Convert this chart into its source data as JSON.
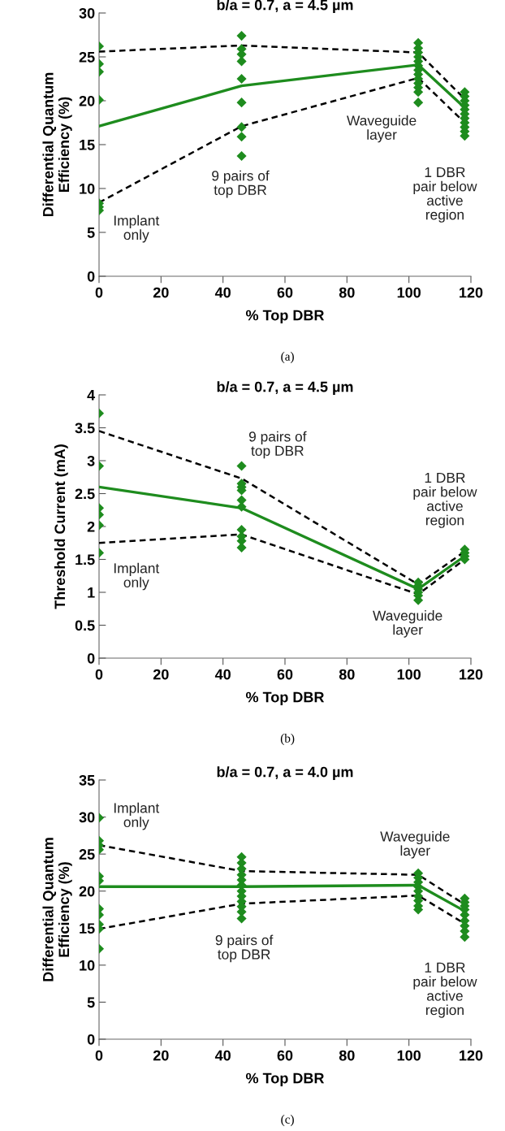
{
  "chart_data": [
    {
      "type": "line",
      "title": "b/a = 0.7, a = 4.5 µm",
      "xlabel": "% Top DBR",
      "ylabel": "Differential Quantum\nEfficiency (%)",
      "xlim": [
        0,
        120
      ],
      "xticks": [
        0,
        20,
        40,
        60,
        80,
        100,
        120
      ],
      "ylim": [
        0,
        30
      ],
      "yticks": [
        0,
        5,
        10,
        15,
        20,
        25,
        30
      ],
      "series": [
        {
          "type": "scatter",
          "marker": "diamond",
          "color": "#1e8c1e",
          "x": [
            0,
            0,
            0,
            0,
            0,
            0,
            0,
            46,
            46,
            46,
            46,
            46,
            46,
            46,
            46,
            46,
            103,
            103,
            103,
            103,
            103,
            103,
            103,
            103,
            103,
            103,
            103,
            103,
            103,
            118,
            118,
            118,
            118,
            118,
            118,
            118,
            118,
            118,
            118,
            118
          ],
          "values": [
            26.2,
            24.2,
            23.3,
            20.1,
            8.3,
            7.9,
            7.5,
            27.4,
            25.9,
            25.3,
            24.5,
            22.5,
            19.8,
            17.0,
            15.9,
            13.7,
            26.6,
            26.0,
            25.5,
            25.0,
            24.5,
            24.0,
            23.5,
            23.0,
            22.5,
            22.0,
            21.5,
            21.0,
            19.8,
            21.0,
            20.5,
            20.0,
            19.5,
            19.0,
            18.5,
            18.0,
            17.5,
            17.0,
            16.5,
            16.0
          ]
        },
        {
          "line_style": "solid",
          "color": "#1e8c1e",
          "x": [
            0,
            46,
            103,
            118
          ],
          "values": [
            17.1,
            21.7,
            24.1,
            19.2
          ]
        },
        {
          "line_style": "dashed",
          "color": "#000000",
          "x": [
            0,
            46,
            103,
            118
          ],
          "values": [
            25.6,
            26.3,
            25.5,
            20.2
          ]
        },
        {
          "line_style": "dashed",
          "color": "#000000",
          "x": [
            0,
            46,
            103,
            118
          ],
          "values": [
            8.4,
            17.1,
            22.6,
            17.5
          ]
        }
      ],
      "annotations": [
        "Implant\nonly",
        "9 pairs of\ntop DBR",
        "Waveguide\nlayer",
        "1 DBR\npair below\nactive\nregion",
        "(a)"
      ]
    },
    {
      "type": "line",
      "title": "b/a = 0.7, a = 4.5 µm",
      "xlabel": "% Top DBR",
      "ylabel": "Threshold Current (mA)",
      "xlim": [
        0,
        120
      ],
      "xticks": [
        0,
        20,
        40,
        60,
        80,
        100,
        120
      ],
      "ylim": [
        0,
        4
      ],
      "yticks": [
        0,
        0.5,
        1,
        1.5,
        2,
        2.5,
        3,
        3.5,
        4
      ],
      "series": [
        {
          "type": "scatter",
          "marker": "diamond",
          "color": "#1e8c1e",
          "x": [
            0,
            0,
            0,
            0,
            0,
            0,
            46,
            46,
            46,
            46,
            46,
            46,
            46,
            46,
            46,
            46,
            103,
            103,
            103,
            103,
            103,
            103,
            118,
            118,
            118,
            118
          ],
          "values": [
            3.72,
            2.92,
            2.28,
            2.18,
            2.02,
            1.6,
            2.92,
            2.65,
            2.6,
            2.55,
            2.4,
            2.3,
            1.95,
            1.85,
            1.78,
            1.68,
            1.15,
            1.1,
            1.05,
            1.0,
            0.95,
            0.88,
            1.65,
            1.6,
            1.55,
            1.5
          ]
        },
        {
          "line_style": "solid",
          "color": "#1e8c1e",
          "x": [
            0,
            46,
            103,
            118
          ],
          "values": [
            2.6,
            2.28,
            1.05,
            1.55
          ]
        },
        {
          "line_style": "dashed",
          "color": "#000000",
          "x": [
            0,
            46,
            103,
            118
          ],
          "values": [
            3.45,
            2.73,
            1.12,
            1.62
          ]
        },
        {
          "line_style": "dashed",
          "color": "#000000",
          "x": [
            0,
            46,
            103,
            118
          ],
          "values": [
            1.75,
            1.88,
            0.97,
            1.5
          ]
        }
      ],
      "annotations": [
        "9 pairs of\ntop DBR",
        "Implant\nonly",
        "Waveguide\nlayer",
        "1 DBR\npair below\nactive\nregion",
        "(b)"
      ]
    },
    {
      "type": "line",
      "title": "b/a = 0.7, a = 4.0 µm",
      "xlabel": "% Top DBR",
      "ylabel": "Differential Quantum\nEfficiency (%)",
      "xlim": [
        0,
        120
      ],
      "xticks": [
        0,
        20,
        40,
        60,
        80,
        100,
        120
      ],
      "ylim": [
        0,
        35
      ],
      "yticks": [
        0,
        5,
        10,
        15,
        20,
        25,
        30,
        35
      ],
      "series": [
        {
          "type": "scatter",
          "marker": "diamond",
          "color": "#1e8c1e",
          "x": [
            0,
            0,
            0,
            0,
            0,
            0,
            0,
            0,
            0,
            0,
            0,
            46,
            46,
            46,
            46,
            46,
            46,
            46,
            46,
            46,
            46,
            46,
            46,
            103,
            103,
            103,
            103,
            103,
            103,
            103,
            103,
            103,
            118,
            118,
            118,
            118,
            118,
            118,
            118,
            118,
            118
          ],
          "values": [
            29.9,
            26.8,
            26.2,
            25.6,
            22.0,
            21.4,
            17.6,
            16.8,
            15.5,
            14.9,
            12.2,
            24.6,
            23.8,
            23.0,
            22.2,
            21.5,
            20.8,
            20.0,
            19.3,
            18.6,
            17.9,
            17.2,
            16.3,
            22.4,
            21.8,
            21.2,
            20.6,
            20.0,
            19.3,
            18.7,
            18.0,
            17.5,
            19.0,
            18.5,
            18.0,
            17.5,
            16.8,
            16.0,
            15.3,
            14.6,
            13.8
          ]
        },
        {
          "line_style": "solid",
          "color": "#1e8c1e",
          "x": [
            0,
            46,
            103,
            118
          ],
          "values": [
            20.6,
            20.6,
            20.8,
            17.3
          ]
        },
        {
          "line_style": "dashed",
          "color": "#000000",
          "x": [
            0,
            46,
            103,
            118
          ],
          "values": [
            26.2,
            22.7,
            22.2,
            18.2
          ]
        },
        {
          "line_style": "dashed",
          "color": "#000000",
          "x": [
            0,
            46,
            103,
            118
          ],
          "values": [
            14.9,
            18.3,
            19.4,
            15.6
          ]
        }
      ],
      "annotations": [
        "Implant\nonly",
        "9 pairs of\ntop DBR",
        "Waveguide\nlayer",
        "1 DBR\npair below\nactive\nregion",
        "(c)"
      ]
    }
  ]
}
